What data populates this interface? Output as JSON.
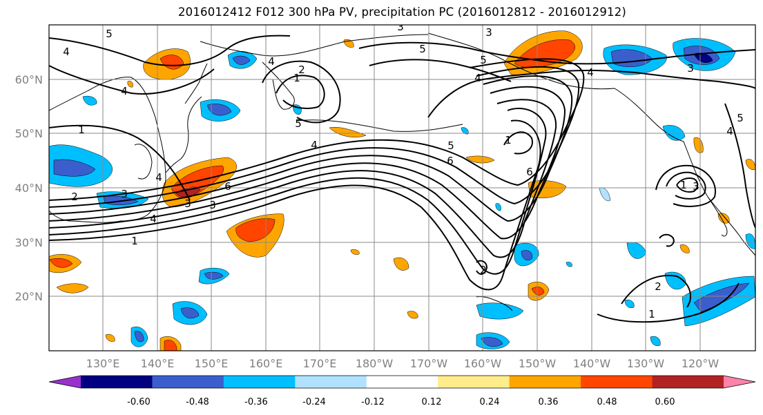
{
  "title": "2016012412 F012 300 hPa PV, precipitation PC (2016012812 - 2016012912)",
  "map": {
    "lon_labels": [
      "130°E",
      "140°E",
      "150°E",
      "160°E",
      "170°E",
      "180°W",
      "170°W",
      "160°W",
      "150°W",
      "140°W",
      "130°W",
      "120°W"
    ],
    "lat_labels": [
      "60°N",
      "50°N",
      "40°N",
      "30°N",
      "20°N"
    ],
    "contour_labels": [
      {
        "text": "5",
        "id": "c1"
      },
      {
        "text": "4",
        "id": "c2"
      },
      {
        "text": "3",
        "id": "c3"
      },
      {
        "text": "4",
        "id": "c4"
      },
      {
        "text": "2",
        "id": "c5"
      },
      {
        "text": "1",
        "id": "c6"
      },
      {
        "text": "4",
        "id": "c7"
      },
      {
        "text": "5",
        "id": "c8"
      },
      {
        "text": "4",
        "id": "c9"
      },
      {
        "text": "1",
        "id": "c10"
      },
      {
        "text": "4",
        "id": "c11"
      },
      {
        "text": "3",
        "id": "c12"
      },
      {
        "text": "2",
        "id": "c13"
      },
      {
        "text": "3",
        "id": "c14"
      },
      {
        "text": "4",
        "id": "c15"
      },
      {
        "text": "3",
        "id": "c16"
      },
      {
        "text": "1",
        "id": "c17"
      },
      {
        "text": "6",
        "id": "c18"
      },
      {
        "text": "5",
        "id": "c19"
      },
      {
        "text": "3",
        "id": "c20"
      },
      {
        "text": "4",
        "id": "c21"
      },
      {
        "text": "5",
        "id": "c22"
      },
      {
        "text": "6",
        "id": "c23"
      },
      {
        "text": "1",
        "id": "c24"
      },
      {
        "text": "6",
        "id": "c25"
      },
      {
        "text": "5",
        "id": "c26"
      },
      {
        "text": "2",
        "id": "c27"
      },
      {
        "text": "4",
        "id": "c28"
      },
      {
        "text": "3",
        "id": "c29"
      },
      {
        "text": "5",
        "id": "c30"
      },
      {
        "text": "4",
        "id": "c31"
      },
      {
        "text": "1",
        "id": "c32"
      },
      {
        "text": "2",
        "id": "c33"
      },
      {
        "text": "1",
        "id": "c34"
      },
      {
        "text": "3",
        "id": "c35"
      }
    ]
  },
  "colorbar": {
    "colors": [
      "#9932cc",
      "#000080",
      "#3a5fcd",
      "#00bfff",
      "#b0e2ff",
      "#ffffff",
      "#ffec8b",
      "#ffa500",
      "#ff4500",
      "#b22222",
      "#ff82ab"
    ],
    "tick_labels": [
      "-0.60",
      "-0.48",
      "-0.36",
      "-0.24",
      "-0.12",
      "0.12",
      "0.24",
      "0.36",
      "0.48",
      "0.60"
    ]
  }
}
